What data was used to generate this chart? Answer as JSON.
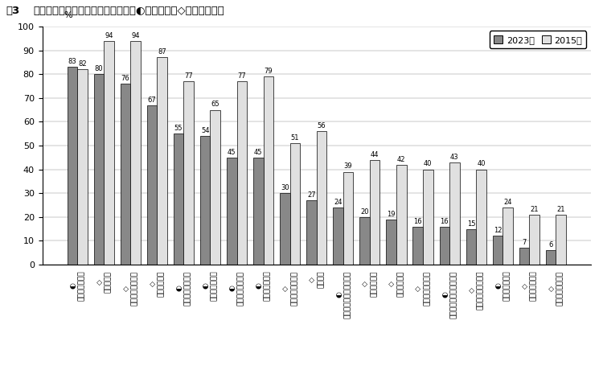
{
  "title_fig": "図3",
  "title_main": "さまざまな環境配慮行動の実行度（◐ごみ減量／◇省エネなど）",
  "categories": [
    "◐\nマイバッグ持参",
    "◇\n電灯の消灯",
    "◇\nポイ捨てをしない",
    "◇\n冷暗房の抑制",
    "◐\n不要な包装を断る",
    "◐\nマイボトル持参",
    "◐\n直せるうちは修理",
    "◐\n生ごみの水切り",
    "◇\nよごれの拭き取り",
    "◇\n地産地消",
    "◐\nリサイクルショップ利用",
    "◇\n地域清掃活動",
    "◇\n環境配慮洗剤",
    "◇\n自然の中で過ごす",
    "◐\nトレイ包装野菜買わない",
    "◇\nエコマーク商品購入",
    "◐\n生ごみの肥料化",
    "◇\n環境活動に寄附",
    "◇\n環境イベント参加"
  ],
  "values_2023": [
    83,
    80,
    76,
    67,
    55,
    54,
    45,
    45,
    30,
    27,
    24,
    20,
    19,
    16,
    16,
    15,
    12,
    7,
    6
  ],
  "values_2015": [
    82,
    94,
    94,
    87,
    77,
    65,
    77,
    79,
    51,
    56,
    39,
    44,
    42,
    40,
    43,
    40,
    24,
    21,
    21
  ],
  "color_2023": "#888888",
  "color_2015": "#e0e0e0",
  "ylim": [
    0,
    100
  ],
  "yticks": [
    0,
    10,
    20,
    30,
    40,
    50,
    60,
    70,
    80,
    90,
    100
  ],
  "bar_width": 0.38,
  "fontsize_title": 9.5,
  "fontsize_label": 6.5,
  "fontsize_value": 6,
  "fontsize_axis": 8,
  "fontsize_legend": 8
}
